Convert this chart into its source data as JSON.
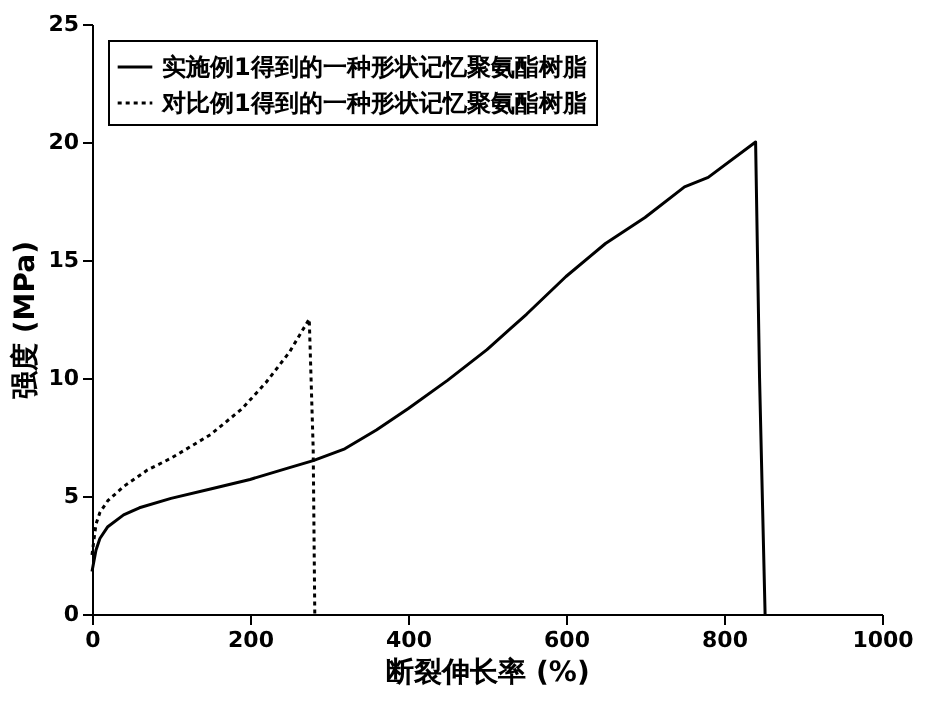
{
  "chart_data": {
    "type": "line",
    "xlabel": "断裂伸长率 (%)",
    "ylabel": "强度 (MPa)",
    "xlim": [
      0,
      1000
    ],
    "xticks": [
      0,
      200,
      400,
      600,
      800,
      1000
    ],
    "ylim": [
      0,
      25
    ],
    "yticks": [
      0,
      5,
      10,
      15,
      20,
      25
    ],
    "grid": false,
    "legend": "top left",
    "marker": "none",
    "series": [
      {
        "name": "实施例1得到的一种形状记忆聚氨酯树脂",
        "color": "#000000",
        "line_style": "solid",
        "x": [
          0,
          5,
          10,
          20,
          40,
          60,
          100,
          150,
          200,
          250,
          280,
          320,
          360,
          400,
          450,
          500,
          550,
          600,
          650,
          700,
          750,
          780,
          840,
          845,
          852
        ],
        "values": [
          1.8,
          2.7,
          3.2,
          3.7,
          4.2,
          4.5,
          4.9,
          5.3,
          5.7,
          6.2,
          6.5,
          7.0,
          7.8,
          8.7,
          9.9,
          11.2,
          12.7,
          14.3,
          15.7,
          16.8,
          18.1,
          18.5,
          20.0,
          10.0,
          0
        ]
      },
      {
        "name": "对比例1得到的一种形状记忆聚氨酯树脂",
        "color": "#000000",
        "line_style": "dotted",
        "x": [
          0,
          5,
          10,
          20,
          40,
          70,
          100,
          150,
          190,
          220,
          250,
          275,
          280,
          282
        ],
        "values": [
          2.5,
          3.8,
          4.3,
          4.8,
          5.4,
          6.1,
          6.6,
          7.6,
          8.7,
          9.8,
          11.1,
          12.5,
          7.0,
          0
        ]
      }
    ]
  }
}
